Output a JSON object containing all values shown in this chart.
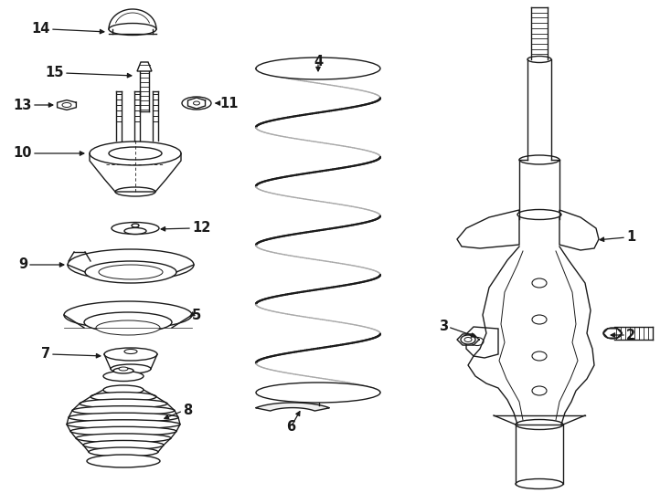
{
  "bg_color": "#ffffff",
  "line_color": "#1a1a1a",
  "fig_width": 7.34,
  "fig_height": 5.4,
  "dpi": 100
}
